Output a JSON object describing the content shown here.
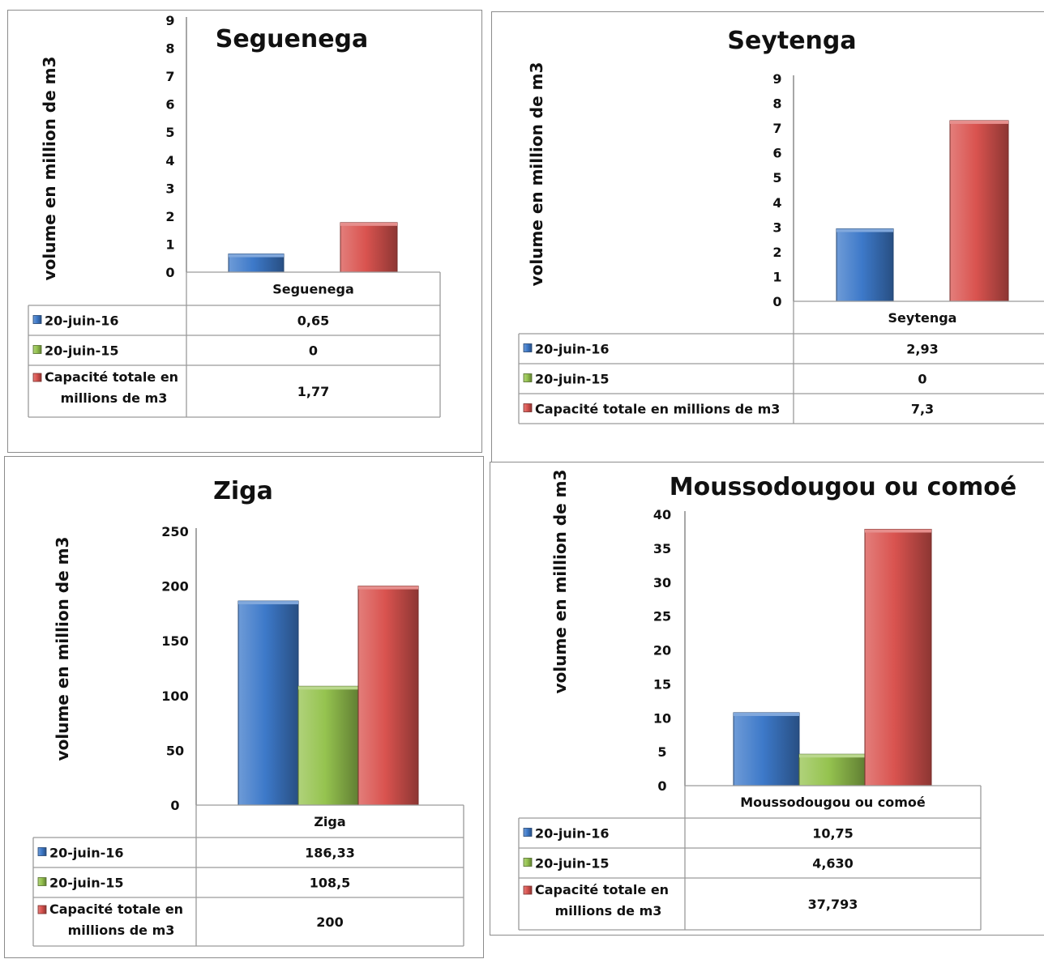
{
  "colors": {
    "20-juin-16": "#3d79c9",
    "20-juin-15": "#95c34f",
    "Capacité totale": "#d9534f"
  },
  "chart_data": [
    {
      "type": "bar",
      "title": "Seguenega",
      "ylabel": "volume en million de m3",
      "ylim": [
        0,
        9
      ],
      "yticks": [
        "0",
        "1",
        "2",
        "3",
        "4",
        "5",
        "6",
        "7",
        "8",
        "9"
      ],
      "categories": [
        "Seguenega"
      ],
      "series": [
        {
          "name": "20-juin-16",
          "values": [
            0.65
          ],
          "label": "0,65"
        },
        {
          "name": "20-juin-15",
          "values": [
            0
          ],
          "label": "0"
        },
        {
          "name": "Capacité totale en millions de m3",
          "values": [
            1.77
          ],
          "label": "1,77"
        }
      ]
    },
    {
      "type": "bar",
      "title": "Seytenga",
      "ylabel": "volume en million de m3",
      "ylim": [
        0,
        9
      ],
      "yticks": [
        "0",
        "1",
        "2",
        "3",
        "4",
        "5",
        "6",
        "7",
        "8",
        "9"
      ],
      "categories": [
        "Seytenga"
      ],
      "series": [
        {
          "name": "20-juin-16",
          "values": [
            2.93
          ],
          "label": "2,93"
        },
        {
          "name": "20-juin-15",
          "values": [
            0
          ],
          "label": "0"
        },
        {
          "name": "Capacité totale en millions de m3",
          "values": [
            7.3
          ],
          "label": "7,3"
        }
      ]
    },
    {
      "type": "bar",
      "title": "Ziga",
      "ylabel": "volume en million de m3",
      "ylim": [
        0,
        250
      ],
      "yticks": [
        "0",
        "50",
        "100",
        "150",
        "200",
        "250"
      ],
      "categories": [
        "Ziga"
      ],
      "series": [
        {
          "name": "20-juin-16",
          "values": [
            186.33
          ],
          "label": "186,33"
        },
        {
          "name": "20-juin-15",
          "values": [
            108.5
          ],
          "label": "108,5"
        },
        {
          "name": "Capacité totale en millions de m3",
          "values": [
            200
          ],
          "label": "200"
        }
      ]
    },
    {
      "type": "bar",
      "title": "Moussodougou ou comoé",
      "ylabel": "volume en million de m3",
      "ylim": [
        0,
        40
      ],
      "yticks": [
        "0",
        "5",
        "10",
        "15",
        "20",
        "25",
        "30",
        "35",
        "40"
      ],
      "categories": [
        "Moussodougou ou comoé"
      ],
      "series": [
        {
          "name": "20-juin-16",
          "values": [
            10.75
          ],
          "label": "10,75"
        },
        {
          "name": "20-juin-15",
          "values": [
            4.63
          ],
          "label": "4,630"
        },
        {
          "name": "Capacité totale en millions de m3",
          "values": [
            37.793
          ],
          "label": "37,793"
        }
      ]
    }
  ]
}
